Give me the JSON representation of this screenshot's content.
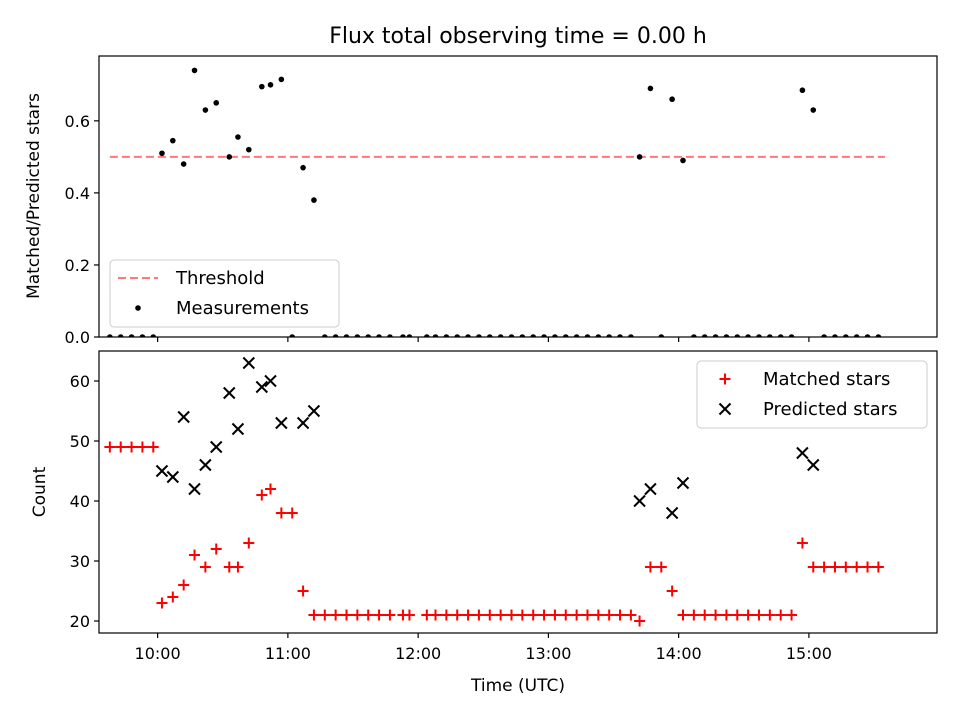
{
  "chart_data": [
    {
      "type": "scatter",
      "title": "Flux total observing time = 0.00 h",
      "xlabel": "",
      "ylabel": "Matched/Predicted stars",
      "xlim": [
        "09:33",
        "15:59"
      ],
      "ylim": [
        0,
        0.78
      ],
      "yticks": [
        0.0,
        0.2,
        0.4,
        0.6
      ],
      "ytick_labels": [
        "0.0",
        "0.2",
        "0.4",
        "0.6"
      ],
      "x_tick_labels_shown": false,
      "legend_position": "lower-left",
      "series": [
        {
          "name": "Threshold",
          "kind": "dashed-line",
          "color": "#ff7777",
          "x": [
            "09:38",
            "15:35"
          ],
          "y": [
            0.5,
            0.5
          ]
        },
        {
          "name": "Measurements",
          "kind": "points",
          "color": "#000000",
          "points": [
            [
              "09:38",
              0.0
            ],
            [
              "09:43",
              0.0
            ],
            [
              "09:48",
              0.0
            ],
            [
              "09:53",
              0.0
            ],
            [
              "09:58",
              0.0
            ],
            [
              "10:02",
              0.51
            ],
            [
              "10:07",
              0.545
            ],
            [
              "10:12",
              0.48
            ],
            [
              "10:17",
              0.74
            ],
            [
              "10:22",
              0.63
            ],
            [
              "10:27",
              0.65
            ],
            [
              "10:33",
              0.5
            ],
            [
              "10:37",
              0.555
            ],
            [
              "10:42",
              0.52
            ],
            [
              "10:48",
              0.695
            ],
            [
              "10:52",
              0.7
            ],
            [
              "10:57",
              0.715
            ],
            [
              "11:02",
              0.0
            ],
            [
              "11:07",
              0.47
            ],
            [
              "11:12",
              0.38
            ],
            [
              "11:17",
              0.0
            ],
            [
              "11:22",
              0.0
            ],
            [
              "11:27",
              0.0
            ],
            [
              "11:32",
              0.0
            ],
            [
              "11:37",
              0.0
            ],
            [
              "11:42",
              0.0
            ],
            [
              "11:47",
              0.0
            ],
            [
              "11:53",
              0.0
            ],
            [
              "11:56",
              0.0
            ],
            [
              "12:04",
              0.0
            ],
            [
              "12:08",
              0.0
            ],
            [
              "12:13",
              0.0
            ],
            [
              "12:18",
              0.0
            ],
            [
              "12:23",
              0.0
            ],
            [
              "12:28",
              0.0
            ],
            [
              "12:33",
              0.0
            ],
            [
              "12:38",
              0.0
            ],
            [
              "12:43",
              0.0
            ],
            [
              "12:48",
              0.0
            ],
            [
              "12:53",
              0.0
            ],
            [
              "12:58",
              0.0
            ],
            [
              "13:03",
              0.0
            ],
            [
              "13:08",
              0.0
            ],
            [
              "13:13",
              0.0
            ],
            [
              "13:18",
              0.0
            ],
            [
              "13:23",
              0.0
            ],
            [
              "13:28",
              0.0
            ],
            [
              "13:33",
              0.0
            ],
            [
              "13:38",
              0.0
            ],
            [
              "13:42",
              0.5
            ],
            [
              "13:47",
              0.69
            ],
            [
              "13:52",
              0.0
            ],
            [
              "13:57",
              0.66
            ],
            [
              "14:02",
              0.49
            ],
            [
              "14:07",
              0.0
            ],
            [
              "14:12",
              0.0
            ],
            [
              "14:17",
              0.0
            ],
            [
              "14:22",
              0.0
            ],
            [
              "14:27",
              0.0
            ],
            [
              "14:32",
              0.0
            ],
            [
              "14:37",
              0.0
            ],
            [
              "14:42",
              0.0
            ],
            [
              "14:47",
              0.0
            ],
            [
              "14:52",
              0.0
            ],
            [
              "14:57",
              0.685
            ],
            [
              "15:02",
              0.63
            ],
            [
              "15:07",
              0.0
            ],
            [
              "15:12",
              0.0
            ],
            [
              "15:17",
              0.0
            ],
            [
              "15:22",
              0.0
            ],
            [
              "15:27",
              0.0
            ],
            [
              "15:32",
              0.0
            ]
          ]
        }
      ]
    },
    {
      "type": "scatter",
      "title": "",
      "xlabel": "Time (UTC)",
      "ylabel": "Count",
      "xlim": [
        "09:33",
        "15:59"
      ],
      "ylim": [
        18,
        65
      ],
      "yticks": [
        20,
        30,
        40,
        50,
        60
      ],
      "ytick_labels": [
        "20",
        "30",
        "40",
        "50",
        "60"
      ],
      "xticks": [
        "10:00",
        "11:00",
        "12:00",
        "13:00",
        "14:00",
        "15:00"
      ],
      "xtick_labels": [
        "10:00",
        "11:00",
        "12:00",
        "13:00",
        "14:00",
        "15:00"
      ],
      "legend_position": "upper-right",
      "series": [
        {
          "name": "Matched stars",
          "kind": "plus",
          "color": "#ff0000",
          "points": [
            [
              "09:38",
              49
            ],
            [
              "09:43",
              49
            ],
            [
              "09:48",
              49
            ],
            [
              "09:53",
              49
            ],
            [
              "09:58",
              49
            ],
            [
              "10:02",
              23
            ],
            [
              "10:07",
              24
            ],
            [
              "10:12",
              26
            ],
            [
              "10:17",
              31
            ],
            [
              "10:22",
              29
            ],
            [
              "10:27",
              32
            ],
            [
              "10:33",
              29
            ],
            [
              "10:37",
              29
            ],
            [
              "10:42",
              33
            ],
            [
              "10:48",
              41
            ],
            [
              "10:52",
              42
            ],
            [
              "10:57",
              38
            ],
            [
              "11:02",
              38
            ],
            [
              "11:07",
              25
            ],
            [
              "11:12",
              21
            ],
            [
              "11:17",
              21
            ],
            [
              "11:22",
              21
            ],
            [
              "11:27",
              21
            ],
            [
              "11:32",
              21
            ],
            [
              "11:37",
              21
            ],
            [
              "11:42",
              21
            ],
            [
              "11:47",
              21
            ],
            [
              "11:53",
              21
            ],
            [
              "11:56",
              21
            ],
            [
              "12:04",
              21
            ],
            [
              "12:08",
              21
            ],
            [
              "12:13",
              21
            ],
            [
              "12:18",
              21
            ],
            [
              "12:23",
              21
            ],
            [
              "12:28",
              21
            ],
            [
              "12:33",
              21
            ],
            [
              "12:38",
              21
            ],
            [
              "12:43",
              21
            ],
            [
              "12:48",
              21
            ],
            [
              "12:53",
              21
            ],
            [
              "12:58",
              21
            ],
            [
              "13:03",
              21
            ],
            [
              "13:08",
              21
            ],
            [
              "13:13",
              21
            ],
            [
              "13:18",
              21
            ],
            [
              "13:23",
              21
            ],
            [
              "13:28",
              21
            ],
            [
              "13:33",
              21
            ],
            [
              "13:38",
              21
            ],
            [
              "13:42",
              20
            ],
            [
              "13:47",
              29
            ],
            [
              "13:52",
              29
            ],
            [
              "13:57",
              25
            ],
            [
              "14:02",
              21
            ],
            [
              "14:07",
              21
            ],
            [
              "14:12",
              21
            ],
            [
              "14:17",
              21
            ],
            [
              "14:22",
              21
            ],
            [
              "14:27",
              21
            ],
            [
              "14:32",
              21
            ],
            [
              "14:37",
              21
            ],
            [
              "14:42",
              21
            ],
            [
              "14:47",
              21
            ],
            [
              "14:52",
              21
            ],
            [
              "14:57",
              33
            ],
            [
              "15:02",
              29
            ],
            [
              "15:07",
              29
            ],
            [
              "15:12",
              29
            ],
            [
              "15:17",
              29
            ],
            [
              "15:22",
              29
            ],
            [
              "15:27",
              29
            ],
            [
              "15:32",
              29
            ]
          ]
        },
        {
          "name": "Predicted stars",
          "kind": "x",
          "color": "#000000",
          "points": [
            [
              "10:02",
              45
            ],
            [
              "10:07",
              44
            ],
            [
              "10:12",
              54
            ],
            [
              "10:17",
              42
            ],
            [
              "10:22",
              46
            ],
            [
              "10:27",
              49
            ],
            [
              "10:33",
              58
            ],
            [
              "10:37",
              52
            ],
            [
              "10:42",
              63
            ],
            [
              "10:48",
              59
            ],
            [
              "10:52",
              60
            ],
            [
              "10:57",
              53
            ],
            [
              "11:07",
              53
            ],
            [
              "11:12",
              55
            ],
            [
              "13:42",
              40
            ],
            [
              "13:47",
              42
            ],
            [
              "13:57",
              38
            ],
            [
              "14:02",
              43
            ],
            [
              "14:57",
              48
            ],
            [
              "15:02",
              46
            ]
          ]
        }
      ]
    }
  ]
}
